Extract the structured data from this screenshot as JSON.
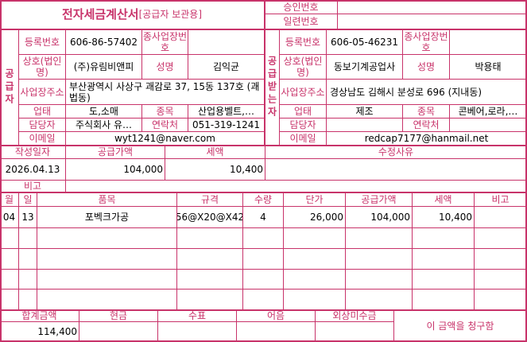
{
  "title": {
    "main": "전자세금계산서",
    "sub": "[공급자 보관용]"
  },
  "approval": {
    "approval_label": "승인번호",
    "approval_value": "",
    "serial_label": "일련번호",
    "serial_value": ""
  },
  "supplier": {
    "section_label": "공급자",
    "reg_label": "등록번호",
    "reg_value": "606-86-57402",
    "sub_label": "종사업장번호",
    "sub_value": "",
    "name_label": "상호(법인명)",
    "name_value": "(주)유림비앤피",
    "rep_label": "성명",
    "rep_value": "김익균",
    "addr_label": "사업장주소",
    "addr_value": "부산광역시 사상구 괘감로 37, 15동 137호 (괘법동)",
    "type_label": "업태",
    "type_value": "도,소매",
    "item_label": "종목",
    "item_value": "산업용벨트,…",
    "contact_label": "담당자",
    "contact_value": "주식회사 유…",
    "phone_label": "연락처",
    "phone_value": "051-319-1241",
    "email_label": "이메일",
    "email_value": "wyt1241@naver.com"
  },
  "receiver": {
    "section_label": "공급받는자",
    "reg_label": "등록번호",
    "reg_value": "606-05-46231",
    "sub_label": "종사업장번호",
    "sub_value": "",
    "name_label": "상호(법인명)",
    "name_value": "동보기계공업사",
    "rep_label": "성명",
    "rep_value": "박용태",
    "addr_label": "사업장주소",
    "addr_value": "경상남도 김해시 분성로 696 (지내동)",
    "type_label": "업태",
    "type_value": "제조",
    "item_label": "종목",
    "item_value": "콘베어,로라,…",
    "contact_label": "담당자",
    "contact_value": "",
    "phone_label": "연락처",
    "phone_value": "",
    "email_label": "이메일",
    "email_value": "redcap7177@hanmail.net"
  },
  "summary": {
    "date_label": "작성일자",
    "date_value": "2026.04.13",
    "supply_label": "공급가액",
    "supply_value": "104,000",
    "tax_label": "세액",
    "tax_value": "10,400",
    "reason_label": "수정사유",
    "reason_value": "",
    "note_label": "비고",
    "note_value": ""
  },
  "items": {
    "headers": [
      "월",
      "일",
      "품목",
      "규격",
      "수량",
      "단가",
      "공급가액",
      "세액",
      "비고"
    ],
    "rows": [
      [
        "04",
        "13",
        "포벡크가공",
        "56@X20@X42",
        "4",
        "26,000",
        "104,000",
        "10,400",
        ""
      ],
      [
        "",
        "",
        "",
        "",
        "",
        "",
        "",
        "",
        ""
      ],
      [
        "",
        "",
        "",
        "",
        "",
        "",
        "",
        "",
        ""
      ],
      [
        "",
        "",
        "",
        "",
        "",
        "",
        "",
        "",
        ""
      ],
      [
        "",
        "",
        "",
        "",
        "",
        "",
        "",
        "",
        ""
      ]
    ]
  },
  "totals": {
    "headers": [
      "합계금액",
      "현금",
      "수표",
      "어음",
      "외상미수금"
    ],
    "values": [
      "114,400",
      "",
      "",
      "",
      ""
    ],
    "claim_text": "이 금액을 청구함"
  }
}
